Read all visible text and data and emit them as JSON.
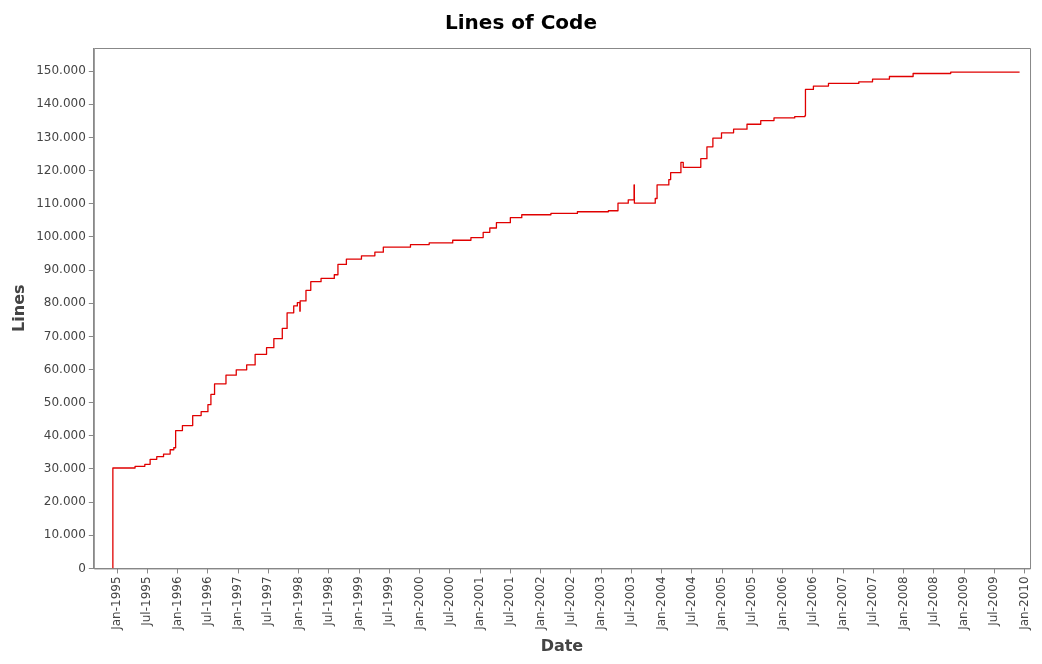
{
  "chart_data": {
    "type": "step",
    "title": "Lines of Code",
    "xlabel": "Date",
    "ylabel": "Lines",
    "legend": false,
    "grid": false,
    "marker": "none",
    "line_style": "solid",
    "xlim": [
      "1994-08-13",
      "2010-02-03"
    ],
    "ylim": [
      0,
      157000
    ],
    "xticks": [
      {
        "value": "1995-01",
        "label": "Jan-1995"
      },
      {
        "value": "1995-07",
        "label": "Jul-1995"
      },
      {
        "value": "1996-01",
        "label": "Jan-1996"
      },
      {
        "value": "1996-07",
        "label": "Jul-1996"
      },
      {
        "value": "1997-01",
        "label": "Jan-1997"
      },
      {
        "value": "1997-07",
        "label": "Jul-1997"
      },
      {
        "value": "1998-01",
        "label": "Jan-1998"
      },
      {
        "value": "1998-07",
        "label": "Jul-1998"
      },
      {
        "value": "1999-01",
        "label": "Jan-1999"
      },
      {
        "value": "1999-07",
        "label": "Jul-1999"
      },
      {
        "value": "2000-01",
        "label": "Jan-2000"
      },
      {
        "value": "2000-07",
        "label": "Jul-2000"
      },
      {
        "value": "2001-01",
        "label": "Jan-2001"
      },
      {
        "value": "2001-07",
        "label": "Jul-2001"
      },
      {
        "value": "2002-01",
        "label": "Jan-2002"
      },
      {
        "value": "2002-07",
        "label": "Jul-2002"
      },
      {
        "value": "2003-01",
        "label": "Jan-2003"
      },
      {
        "value": "2003-07",
        "label": "Jul-2003"
      },
      {
        "value": "2004-01",
        "label": "Jan-2004"
      },
      {
        "value": "2004-07",
        "label": "Jul-2004"
      },
      {
        "value": "2005-01",
        "label": "Jan-2005"
      },
      {
        "value": "2005-07",
        "label": "Jul-2005"
      },
      {
        "value": "2006-01",
        "label": "Jan-2006"
      },
      {
        "value": "2006-07",
        "label": "Jul-2006"
      },
      {
        "value": "2007-01",
        "label": "Jan-2007"
      },
      {
        "value": "2007-07",
        "label": "Jul-2007"
      },
      {
        "value": "2008-01",
        "label": "Jan-2008"
      },
      {
        "value": "2008-07",
        "label": "Jul-2008"
      },
      {
        "value": "2009-01",
        "label": "Jan-2009"
      },
      {
        "value": "2009-07",
        "label": "Jul-2009"
      },
      {
        "value": "2010-01",
        "label": "Jan-2010"
      }
    ],
    "yticks": [
      {
        "value": 0,
        "label": "0"
      },
      {
        "value": 10000,
        "label": "10.000"
      },
      {
        "value": 20000,
        "label": "20.000"
      },
      {
        "value": 30000,
        "label": "30.000"
      },
      {
        "value": 40000,
        "label": "40.000"
      },
      {
        "value": 50000,
        "label": "50.000"
      },
      {
        "value": 60000,
        "label": "60.000"
      },
      {
        "value": 70000,
        "label": "70.000"
      },
      {
        "value": 80000,
        "label": "80.000"
      },
      {
        "value": 90000,
        "label": "90.000"
      },
      {
        "value": 100000,
        "label": "100.000"
      },
      {
        "value": 110000,
        "label": "110.000"
      },
      {
        "value": 120000,
        "label": "120.000"
      },
      {
        "value": 130000,
        "label": "130.000"
      },
      {
        "value": 140000,
        "label": "140.000"
      },
      {
        "value": 150000,
        "label": "150.000"
      }
    ],
    "x": [
      "1994-12-05",
      "1994-12-06",
      "1995-04-19",
      "1995-06-17",
      "1995-07-19",
      "1995-08-28",
      "1995-10-08",
      "1995-11-17",
      "1995-12-09",
      "1995-12-20",
      "1996-01-30",
      "1996-04-01",
      "1996-05-22",
      "1996-07-02",
      "1996-07-20",
      "1996-08-11",
      "1996-10-19",
      "1996-12-20",
      "1997-02-21",
      "1997-04-13",
      "1997-06-21",
      "1997-08-04",
      "1997-09-24",
      "1997-10-23",
      "1997-12-02",
      "1997-12-24",
      "1998-01-08",
      "1998-01-10",
      "1998-02-14",
      "1998-03-15",
      "1998-05-16",
      "1998-08-04",
      "1998-08-26",
      "1998-10-16",
      "1999-01-15",
      "1999-04-06",
      "1999-05-27",
      "1999-11-07",
      "2000-02-28",
      "2000-07-19",
      "2000-11-06",
      "2001-01-19",
      "2001-02-28",
      "2001-04-09",
      "2001-07-02",
      "2001-09-09",
      "2002-03-04",
      "2002-08-11",
      "2003-02-14",
      "2003-04-13",
      "2003-06-14",
      "2003-07-19",
      "2003-07-21",
      "2003-11-24",
      "2003-12-05",
      "2004-02-14",
      "2004-02-25",
      "2004-04-27",
      "2004-05-11",
      "2004-08-25",
      "2004-10-01",
      "2004-11-06",
      "2004-12-28",
      "2005-03-11",
      "2005-05-31",
      "2005-08-22",
      "2005-11-10",
      "2006-03-15",
      "2006-05-16",
      "2006-05-19",
      "2006-07-06",
      "2006-10-05",
      "2007-04-06",
      "2007-06-28",
      "2007-10-08",
      "2008-02-28",
      "2008-10-12",
      "2009-12-02"
    ],
    "series": [
      {
        "color": "#e00000",
        "values": [
          0,
          30300,
          30800,
          31400,
          32900,
          33700,
          34500,
          35800,
          36400,
          41600,
          43100,
          46100,
          47300,
          49400,
          52500,
          55700,
          58300,
          59900,
          61400,
          64600,
          66600,
          69300,
          72400,
          77100,
          79200,
          80200,
          77600,
          80700,
          83900,
          86500,
          87500,
          88600,
          91700,
          93300,
          94300,
          95400,
          96900,
          97700,
          98200,
          99000,
          99800,
          101400,
          102700,
          104300,
          105800,
          106700,
          107100,
          107600,
          107900,
          110200,
          111200,
          115700,
          110200,
          111600,
          115700,
          117300,
          119400,
          122500,
          121000,
          123600,
          127200,
          129800,
          131400,
          132500,
          134000,
          135100,
          135900,
          136300,
          136600,
          144500,
          145500,
          146300,
          146800,
          147600,
          148400,
          149300,
          149700,
          149700
        ]
      }
    ]
  }
}
